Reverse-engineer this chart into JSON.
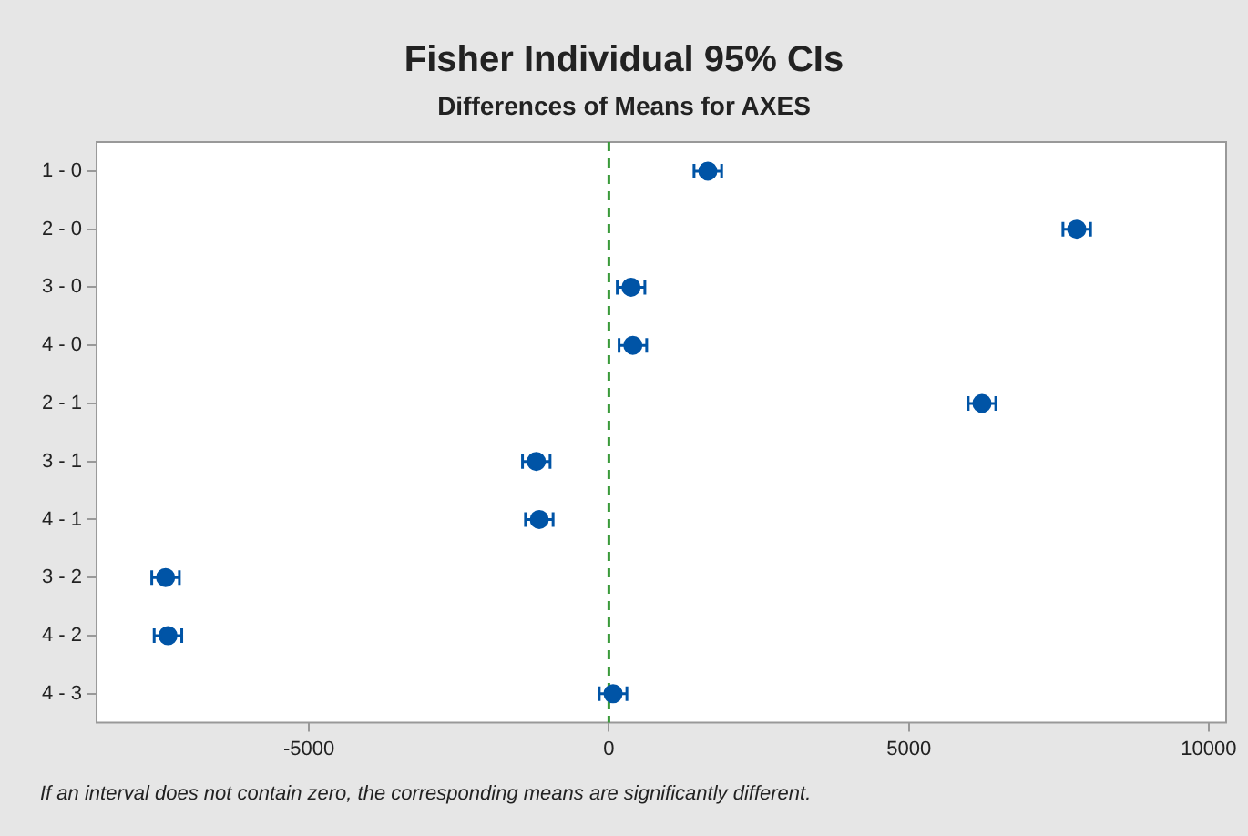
{
  "chart_data": {
    "type": "scatter",
    "title": "Fisher Individual 95% CIs",
    "subtitle": "Differences of Means for AXES",
    "categories": [
      "1 - 0",
      "2 - 0",
      "3 - 0",
      "4 - 0",
      "2 - 1",
      "3 - 1",
      "4 - 1",
      "3 - 2",
      "4 - 2",
      "4 - 3"
    ],
    "orientation": "horizontal",
    "series": [
      {
        "color": "#0054a6",
        "values": [
          1650,
          7800,
          370,
          400,
          6220,
          -1210,
          -1160,
          -7390,
          -7350,
          70
        ],
        "errors": [
          230,
          230,
          230,
          230,
          230,
          230,
          230,
          230,
          230,
          230
        ]
      }
    ],
    "xlim": [
      -8540,
      10290
    ],
    "xticks": [
      -5000,
      0,
      5000,
      10000
    ],
    "ref_lines": [
      {
        "axis": "x",
        "value": 0,
        "color": "#3a9a3a",
        "line_style": "dashed"
      }
    ],
    "marker": "circle",
    "grid": false,
    "legend": false,
    "annotations": [
      "If an interval does not contain zero, the corresponding means are significantly different."
    ]
  }
}
